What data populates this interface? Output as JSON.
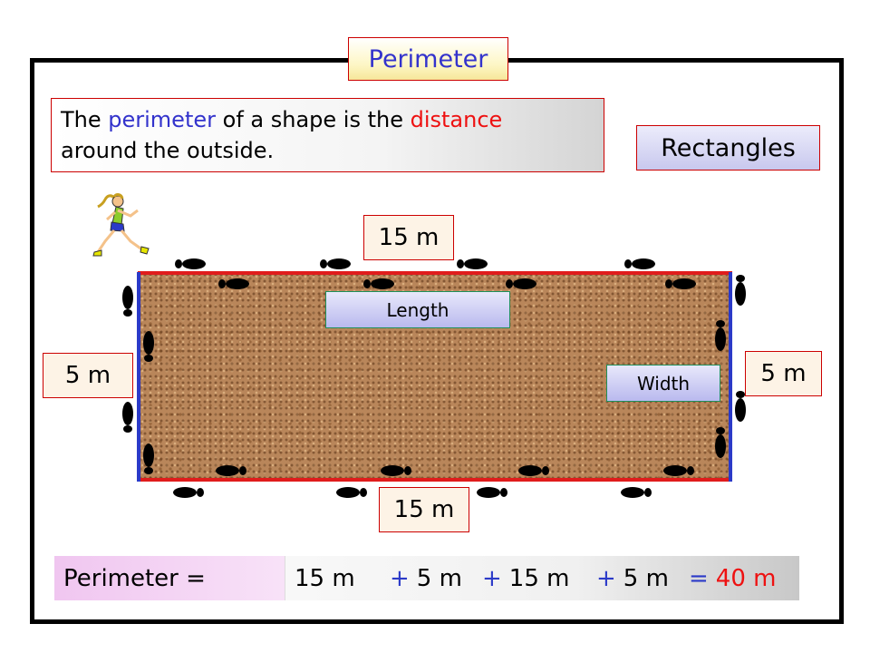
{
  "title": "Perimeter",
  "definition": {
    "part1": "The ",
    "word_perimeter": "perimeter",
    "part2": " of a shape is the ",
    "word_distance": "distance",
    "part3": "around the outside."
  },
  "section_label": "Rectangles",
  "rectangle": {
    "top_length": "15 m",
    "bottom_length": "15 m",
    "left_width": "5 m",
    "right_width": "5 m",
    "length_label": "Length",
    "width_label": "Width"
  },
  "formula": {
    "label": "Perimeter =",
    "term1": "15 m",
    "plus1": "+",
    "term2": "5 m",
    "plus2": "+",
    "term3": "15 m",
    "plus3": "+",
    "term4": "5 m",
    "equals": "=",
    "result": "40 m"
  },
  "colors": {
    "perimeter_edge_long": "#e01c1c",
    "perimeter_edge_short": "#2b3ac8",
    "highlight_blue": "#3333cc",
    "highlight_red": "#ee1111"
  }
}
